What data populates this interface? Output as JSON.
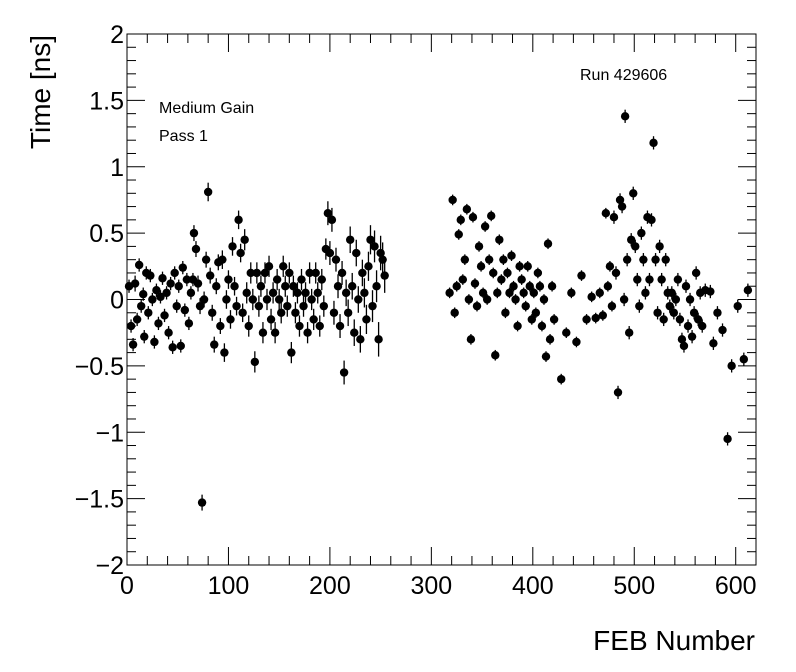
{
  "chart_data": {
    "type": "scatter",
    "xlabel": "FEB Number",
    "ylabel": "Time [ns]",
    "xlim": [
      0,
      620
    ],
    "ylim": [
      -2,
      2
    ],
    "x_major_ticks": [
      0,
      100,
      200,
      300,
      400,
      500,
      600
    ],
    "y_major_ticks": [
      -2,
      -1.5,
      -1,
      -0.5,
      0,
      0.5,
      1,
      1.5,
      2
    ],
    "x_tick_labels": [
      "0",
      "100",
      "200",
      "300",
      "400",
      "500",
      "600"
    ],
    "y_tick_labels": [
      "−2",
      "−1.5",
      "−1",
      "−0.5",
      "0",
      "0.5",
      "1",
      "1.5",
      "2"
    ],
    "grid": false,
    "annotations": {
      "gain": "Medium Gain",
      "pass": "Pass 1",
      "run": "Run 429606"
    },
    "marker_color": "#000000",
    "points": [
      [
        2,
        0.1,
        0.05
      ],
      [
        4,
        -0.2,
        0.05
      ],
      [
        6,
        -0.34,
        0.05
      ],
      [
        8,
        0.12,
        0.06
      ],
      [
        10,
        -0.15,
        0.05
      ],
      [
        12,
        0.26,
        0.05
      ],
      [
        14,
        -0.05,
        0.05
      ],
      [
        16,
        0.04,
        0.05
      ],
      [
        17,
        -0.28,
        0.05
      ],
      [
        19,
        0.2,
        0.05
      ],
      [
        21,
        -0.1,
        0.05
      ],
      [
        23,
        0.18,
        0.05
      ],
      [
        25,
        0.0,
        0.05
      ],
      [
        27,
        -0.32,
        0.05
      ],
      [
        29,
        0.07,
        0.05
      ],
      [
        31,
        -0.18,
        0.05
      ],
      [
        33,
        0.02,
        0.05
      ],
      [
        35,
        0.16,
        0.05
      ],
      [
        37,
        -0.12,
        0.05
      ],
      [
        39,
        0.05,
        0.05
      ],
      [
        41,
        -0.25,
        0.05
      ],
      [
        43,
        0.12,
        0.05
      ],
      [
        45,
        -0.36,
        0.05
      ],
      [
        47,
        0.2,
        0.05
      ],
      [
        49,
        -0.05,
        0.05
      ],
      [
        51,
        0.1,
        0.05
      ],
      [
        53,
        -0.35,
        0.05
      ],
      [
        55,
        0.24,
        0.05
      ],
      [
        57,
        -0.08,
        0.05
      ],
      [
        59,
        0.15,
        0.05
      ],
      [
        61,
        -0.18,
        0.05
      ],
      [
        63,
        0.05,
        0.05
      ],
      [
        65,
        0.15,
        0.05
      ],
      [
        66,
        0.5,
        0.06
      ],
      [
        68,
        0.38,
        0.06
      ],
      [
        70,
        0.12,
        0.06
      ],
      [
        72,
        -0.05,
        0.06
      ],
      [
        74,
        -1.53,
        0.06
      ],
      [
        76,
        0.0,
        0.06
      ],
      [
        78,
        0.3,
        0.06
      ],
      [
        80,
        0.81,
        0.07
      ],
      [
        82,
        0.18,
        0.06
      ],
      [
        84,
        -0.1,
        0.06
      ],
      [
        86,
        -0.34,
        0.06
      ],
      [
        88,
        0.1,
        0.06
      ],
      [
        90,
        0.28,
        0.06
      ],
      [
        92,
        -0.2,
        0.06
      ],
      [
        94,
        0.3,
        0.07
      ],
      [
        96,
        -0.4,
        0.07
      ],
      [
        98,
        0.0,
        0.07
      ],
      [
        100,
        0.15,
        0.07
      ],
      [
        102,
        -0.15,
        0.07
      ],
      [
        104,
        0.4,
        0.07
      ],
      [
        106,
        0.1,
        0.07
      ],
      [
        108,
        -0.05,
        0.07
      ],
      [
        110,
        0.6,
        0.07
      ],
      [
        112,
        0.35,
        0.07
      ],
      [
        114,
        -0.1,
        0.07
      ],
      [
        116,
        0.45,
        0.08
      ],
      [
        118,
        0.05,
        0.08
      ],
      [
        120,
        -0.2,
        0.08
      ],
      [
        122,
        0.2,
        0.08
      ],
      [
        124,
        0.0,
        0.08
      ],
      [
        126,
        -0.47,
        0.08
      ],
      [
        128,
        0.2,
        0.08
      ],
      [
        130,
        -0.05,
        0.08
      ],
      [
        132,
        0.1,
        0.08
      ],
      [
        134,
        -0.25,
        0.08
      ],
      [
        136,
        0.2,
        0.08
      ],
      [
        138,
        0.0,
        0.08
      ],
      [
        140,
        0.25,
        0.08
      ],
      [
        142,
        -0.15,
        0.08
      ],
      [
        144,
        0.05,
        0.08
      ],
      [
        146,
        -0.25,
        0.08
      ],
      [
        148,
        0.15,
        0.08
      ],
      [
        150,
        0.0,
        0.08
      ],
      [
        152,
        -0.1,
        0.08
      ],
      [
        154,
        0.25,
        0.08
      ],
      [
        156,
        0.1,
        0.08
      ],
      [
        158,
        -0.05,
        0.08
      ],
      [
        160,
        0.2,
        0.08
      ],
      [
        162,
        -0.4,
        0.08
      ],
      [
        164,
        0.1,
        0.08
      ],
      [
        166,
        -0.1,
        0.08
      ],
      [
        168,
        0.05,
        0.08
      ],
      [
        170,
        -0.2,
        0.08
      ],
      [
        172,
        0.15,
        0.08
      ],
      [
        174,
        -0.05,
        0.08
      ],
      [
        176,
        0.05,
        0.08
      ],
      [
        178,
        -0.25,
        0.08
      ],
      [
        180,
        0.2,
        0.08
      ],
      [
        182,
        0.0,
        0.08
      ],
      [
        184,
        -0.15,
        0.08
      ],
      [
        186,
        0.2,
        0.08
      ],
      [
        188,
        0.05,
        0.08
      ],
      [
        190,
        -0.2,
        0.08
      ],
      [
        192,
        0.15,
        0.08
      ],
      [
        194,
        -0.05,
        0.08
      ],
      [
        196,
        0.38,
        0.08
      ],
      [
        198,
        0.65,
        0.09
      ],
      [
        200,
        0.35,
        0.09
      ],
      [
        202,
        0.6,
        0.09
      ],
      [
        204,
        -0.1,
        0.09
      ],
      [
        206,
        0.3,
        0.09
      ],
      [
        208,
        0.1,
        0.09
      ],
      [
        210,
        -0.2,
        0.09
      ],
      [
        212,
        0.2,
        0.09
      ],
      [
        214,
        -0.55,
        0.09
      ],
      [
        216,
        0.05,
        0.1
      ],
      [
        218,
        -0.1,
        0.1
      ],
      [
        220,
        0.45,
        0.1
      ],
      [
        222,
        0.1,
        0.1
      ],
      [
        224,
        -0.25,
        0.1
      ],
      [
        226,
        0.35,
        0.1
      ],
      [
        228,
        0.0,
        0.1
      ],
      [
        230,
        -0.3,
        0.1
      ],
      [
        232,
        0.2,
        0.1
      ],
      [
        234,
        0.05,
        0.11
      ],
      [
        236,
        -0.15,
        0.11
      ],
      [
        238,
        0.25,
        0.11
      ],
      [
        240,
        0.45,
        0.11
      ],
      [
        242,
        -0.05,
        0.12
      ],
      [
        244,
        0.4,
        0.12
      ],
      [
        246,
        0.1,
        0.12
      ],
      [
        248,
        -0.3,
        0.13
      ],
      [
        250,
        0.35,
        0.13
      ],
      [
        252,
        0.3,
        0.13
      ],
      [
        254,
        0.18,
        0.13
      ],
      [
        318,
        0.05,
        0.04
      ],
      [
        321,
        0.75,
        0.04
      ],
      [
        323,
        -0.1,
        0.04
      ],
      [
        325,
        0.1,
        0.04
      ],
      [
        327,
        0.49,
        0.04
      ],
      [
        329,
        0.6,
        0.04
      ],
      [
        331,
        0.15,
        0.04
      ],
      [
        333,
        0.3,
        0.04
      ],
      [
        335,
        0.68,
        0.04
      ],
      [
        337,
        0.0,
        0.04
      ],
      [
        339,
        -0.3,
        0.04
      ],
      [
        341,
        0.62,
        0.04
      ],
      [
        343,
        0.12,
        0.04
      ],
      [
        345,
        -0.05,
        0.04
      ],
      [
        347,
        0.4,
        0.04
      ],
      [
        349,
        0.25,
        0.04
      ],
      [
        351,
        0.05,
        0.04
      ],
      [
        353,
        0.55,
        0.04
      ],
      [
        355,
        0.0,
        0.04
      ],
      [
        357,
        0.3,
        0.04
      ],
      [
        359,
        0.63,
        0.04
      ],
      [
        361,
        0.2,
        0.04
      ],
      [
        363,
        -0.42,
        0.04
      ],
      [
        365,
        0.05,
        0.04
      ],
      [
        367,
        0.45,
        0.04
      ],
      [
        369,
        0.15,
        0.04
      ],
      [
        371,
        0.3,
        0.04
      ],
      [
        373,
        -0.1,
        0.04
      ],
      [
        375,
        0.2,
        0.04
      ],
      [
        377,
        0.05,
        0.04
      ],
      [
        379,
        0.33,
        0.04
      ],
      [
        381,
        0.1,
        0.04
      ],
      [
        383,
        0.0,
        0.04
      ],
      [
        385,
        -0.2,
        0.04
      ],
      [
        387,
        0.25,
        0.04
      ],
      [
        389,
        0.15,
        0.04
      ],
      [
        391,
        0.05,
        0.04
      ],
      [
        393,
        -0.05,
        0.04
      ],
      [
        395,
        0.25,
        0.04
      ],
      [
        397,
        0.1,
        0.04
      ],
      [
        399,
        -0.15,
        0.04
      ],
      [
        401,
        0.05,
        0.04
      ],
      [
        403,
        -0.1,
        0.04
      ],
      [
        405,
        0.2,
        0.04
      ],
      [
        407,
        0.1,
        0.04
      ],
      [
        409,
        -0.2,
        0.04
      ],
      [
        411,
        0.0,
        0.04
      ],
      [
        413,
        -0.43,
        0.04
      ],
      [
        415,
        0.42,
        0.04
      ],
      [
        417,
        -0.3,
        0.04
      ],
      [
        419,
        0.1,
        0.04
      ],
      [
        421,
        -0.15,
        0.04
      ],
      [
        428,
        -0.6,
        0.04
      ],
      [
        433,
        -0.25,
        0.04
      ],
      [
        438,
        0.05,
        0.04
      ],
      [
        443,
        -0.32,
        0.04
      ],
      [
        448,
        0.18,
        0.04
      ],
      [
        453,
        -0.15,
        0.04
      ],
      [
        458,
        0.02,
        0.04
      ],
      [
        462,
        -0.14,
        0.04
      ],
      [
        466,
        0.05,
        0.04
      ],
      [
        469,
        -0.12,
        0.04
      ],
      [
        472,
        0.65,
        0.04
      ],
      [
        474,
        0.1,
        0.04
      ],
      [
        476,
        0.25,
        0.04
      ],
      [
        478,
        -0.05,
        0.04
      ],
      [
        480,
        0.62,
        0.05
      ],
      [
        482,
        0.2,
        0.05
      ],
      [
        484,
        -0.7,
        0.05
      ],
      [
        486,
        0.75,
        0.05
      ],
      [
        488,
        0.7,
        0.05
      ],
      [
        490,
        0.0,
        0.05
      ],
      [
        491,
        1.38,
        0.05
      ],
      [
        493,
        0.3,
        0.05
      ],
      [
        495,
        -0.25,
        0.05
      ],
      [
        497,
        0.45,
        0.05
      ],
      [
        499,
        0.8,
        0.05
      ],
      [
        501,
        0.4,
        0.05
      ],
      [
        503,
        0.15,
        0.05
      ],
      [
        505,
        -0.05,
        0.05
      ],
      [
        507,
        0.5,
        0.05
      ],
      [
        509,
        0.3,
        0.05
      ],
      [
        511,
        0.05,
        0.05
      ],
      [
        513,
        0.62,
        0.05
      ],
      [
        515,
        0.15,
        0.05
      ],
      [
        517,
        0.6,
        0.05
      ],
      [
        519,
        1.18,
        0.05
      ],
      [
        521,
        0.3,
        0.05
      ],
      [
        523,
        -0.1,
        0.05
      ],
      [
        525,
        0.4,
        0.05
      ],
      [
        527,
        0.15,
        0.05
      ],
      [
        529,
        -0.15,
        0.05
      ],
      [
        531,
        0.3,
        0.05
      ],
      [
        533,
        0.05,
        0.05
      ],
      [
        535,
        -0.05,
        0.05
      ],
      [
        537,
        0.05,
        0.05
      ],
      [
        539,
        -0.1,
        0.05
      ],
      [
        541,
        0.0,
        0.05
      ],
      [
        543,
        0.15,
        0.05
      ],
      [
        545,
        -0.15,
        0.05
      ],
      [
        547,
        -0.3,
        0.05
      ],
      [
        549,
        -0.35,
        0.05
      ],
      [
        551,
        0.1,
        0.05
      ],
      [
        553,
        -0.2,
        0.05
      ],
      [
        555,
        0.0,
        0.05
      ],
      [
        557,
        -0.28,
        0.05
      ],
      [
        559,
        -0.1,
        0.05
      ],
      [
        561,
        0.2,
        0.05
      ],
      [
        563,
        -0.15,
        0.05
      ],
      [
        565,
        0.05,
        0.05
      ],
      [
        567,
        -0.2,
        0.05
      ],
      [
        570,
        0.07,
        0.05
      ],
      [
        575,
        0.06,
        0.05
      ],
      [
        578,
        -0.33,
        0.05
      ],
      [
        582,
        -0.1,
        0.05
      ],
      [
        587,
        -0.23,
        0.05
      ],
      [
        592,
        -1.05,
        0.05
      ],
      [
        596,
        -0.5,
        0.05
      ],
      [
        602,
        -0.05,
        0.05
      ],
      [
        608,
        -0.45,
        0.05
      ],
      [
        612,
        0.07,
        0.05
      ]
    ]
  }
}
